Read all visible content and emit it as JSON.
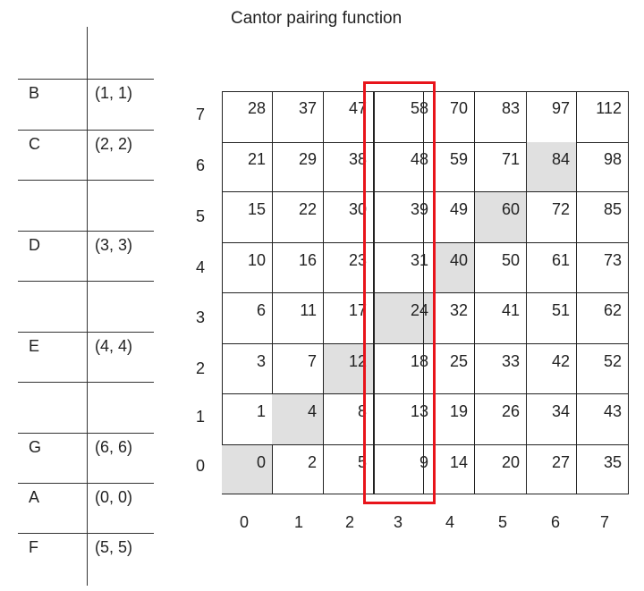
{
  "title": "Cantor pairing function",
  "left_table": [
    {
      "letter": "B",
      "pair": "(1, 1)"
    },
    {
      "letter": "C",
      "pair": "(2, 2)"
    },
    {
      "letter": "",
      "pair": ""
    },
    {
      "letter": "D",
      "pair": "(3, 3)"
    },
    {
      "letter": "",
      "pair": ""
    },
    {
      "letter": "E",
      "pair": "(4, 4)"
    },
    {
      "letter": "",
      "pair": ""
    },
    {
      "letter": "G",
      "pair": "(6, 6)"
    },
    {
      "letter": "A",
      "pair": "(0, 0)"
    },
    {
      "letter": "F",
      "pair": "(5, 5)"
    }
  ],
  "grid": {
    "row_labels": [
      "7",
      "6",
      "5",
      "4",
      "3",
      "2",
      "1",
      "0"
    ],
    "col_labels": [
      "0",
      "1",
      "2",
      "3",
      "4",
      "5",
      "6",
      "7"
    ],
    "rows": [
      [
        "28",
        "37",
        "47",
        "58",
        "70",
        "83",
        "97",
        "112"
      ],
      [
        "21",
        "29",
        "38",
        "48",
        "59",
        "71",
        "84",
        "98"
      ],
      [
        "15",
        "22",
        "30",
        "39",
        "49",
        "60",
        "72",
        "85"
      ],
      [
        "10",
        "16",
        "23",
        "31",
        "40",
        "50",
        "61",
        "73"
      ],
      [
        "6",
        "11",
        "17",
        "24",
        "32",
        "41",
        "51",
        "62"
      ],
      [
        "3",
        "7",
        "12",
        "18",
        "25",
        "33",
        "42",
        "52"
      ],
      [
        "1",
        "4",
        "8",
        "13",
        "19",
        "26",
        "34",
        "43"
      ],
      [
        "0",
        "2",
        "5",
        "9",
        "14",
        "20",
        "27",
        "35"
      ]
    ],
    "highlighted_cells": [
      [
        0,
        0
      ],
      [
        1,
        1
      ],
      [
        2,
        2
      ],
      [
        3,
        3
      ],
      [
        4,
        4
      ],
      [
        5,
        5
      ],
      [
        6,
        6
      ]
    ],
    "highlight_color": "#e0e0e0",
    "highlight_column": 3,
    "highlight_box_color": "#e8141b"
  }
}
